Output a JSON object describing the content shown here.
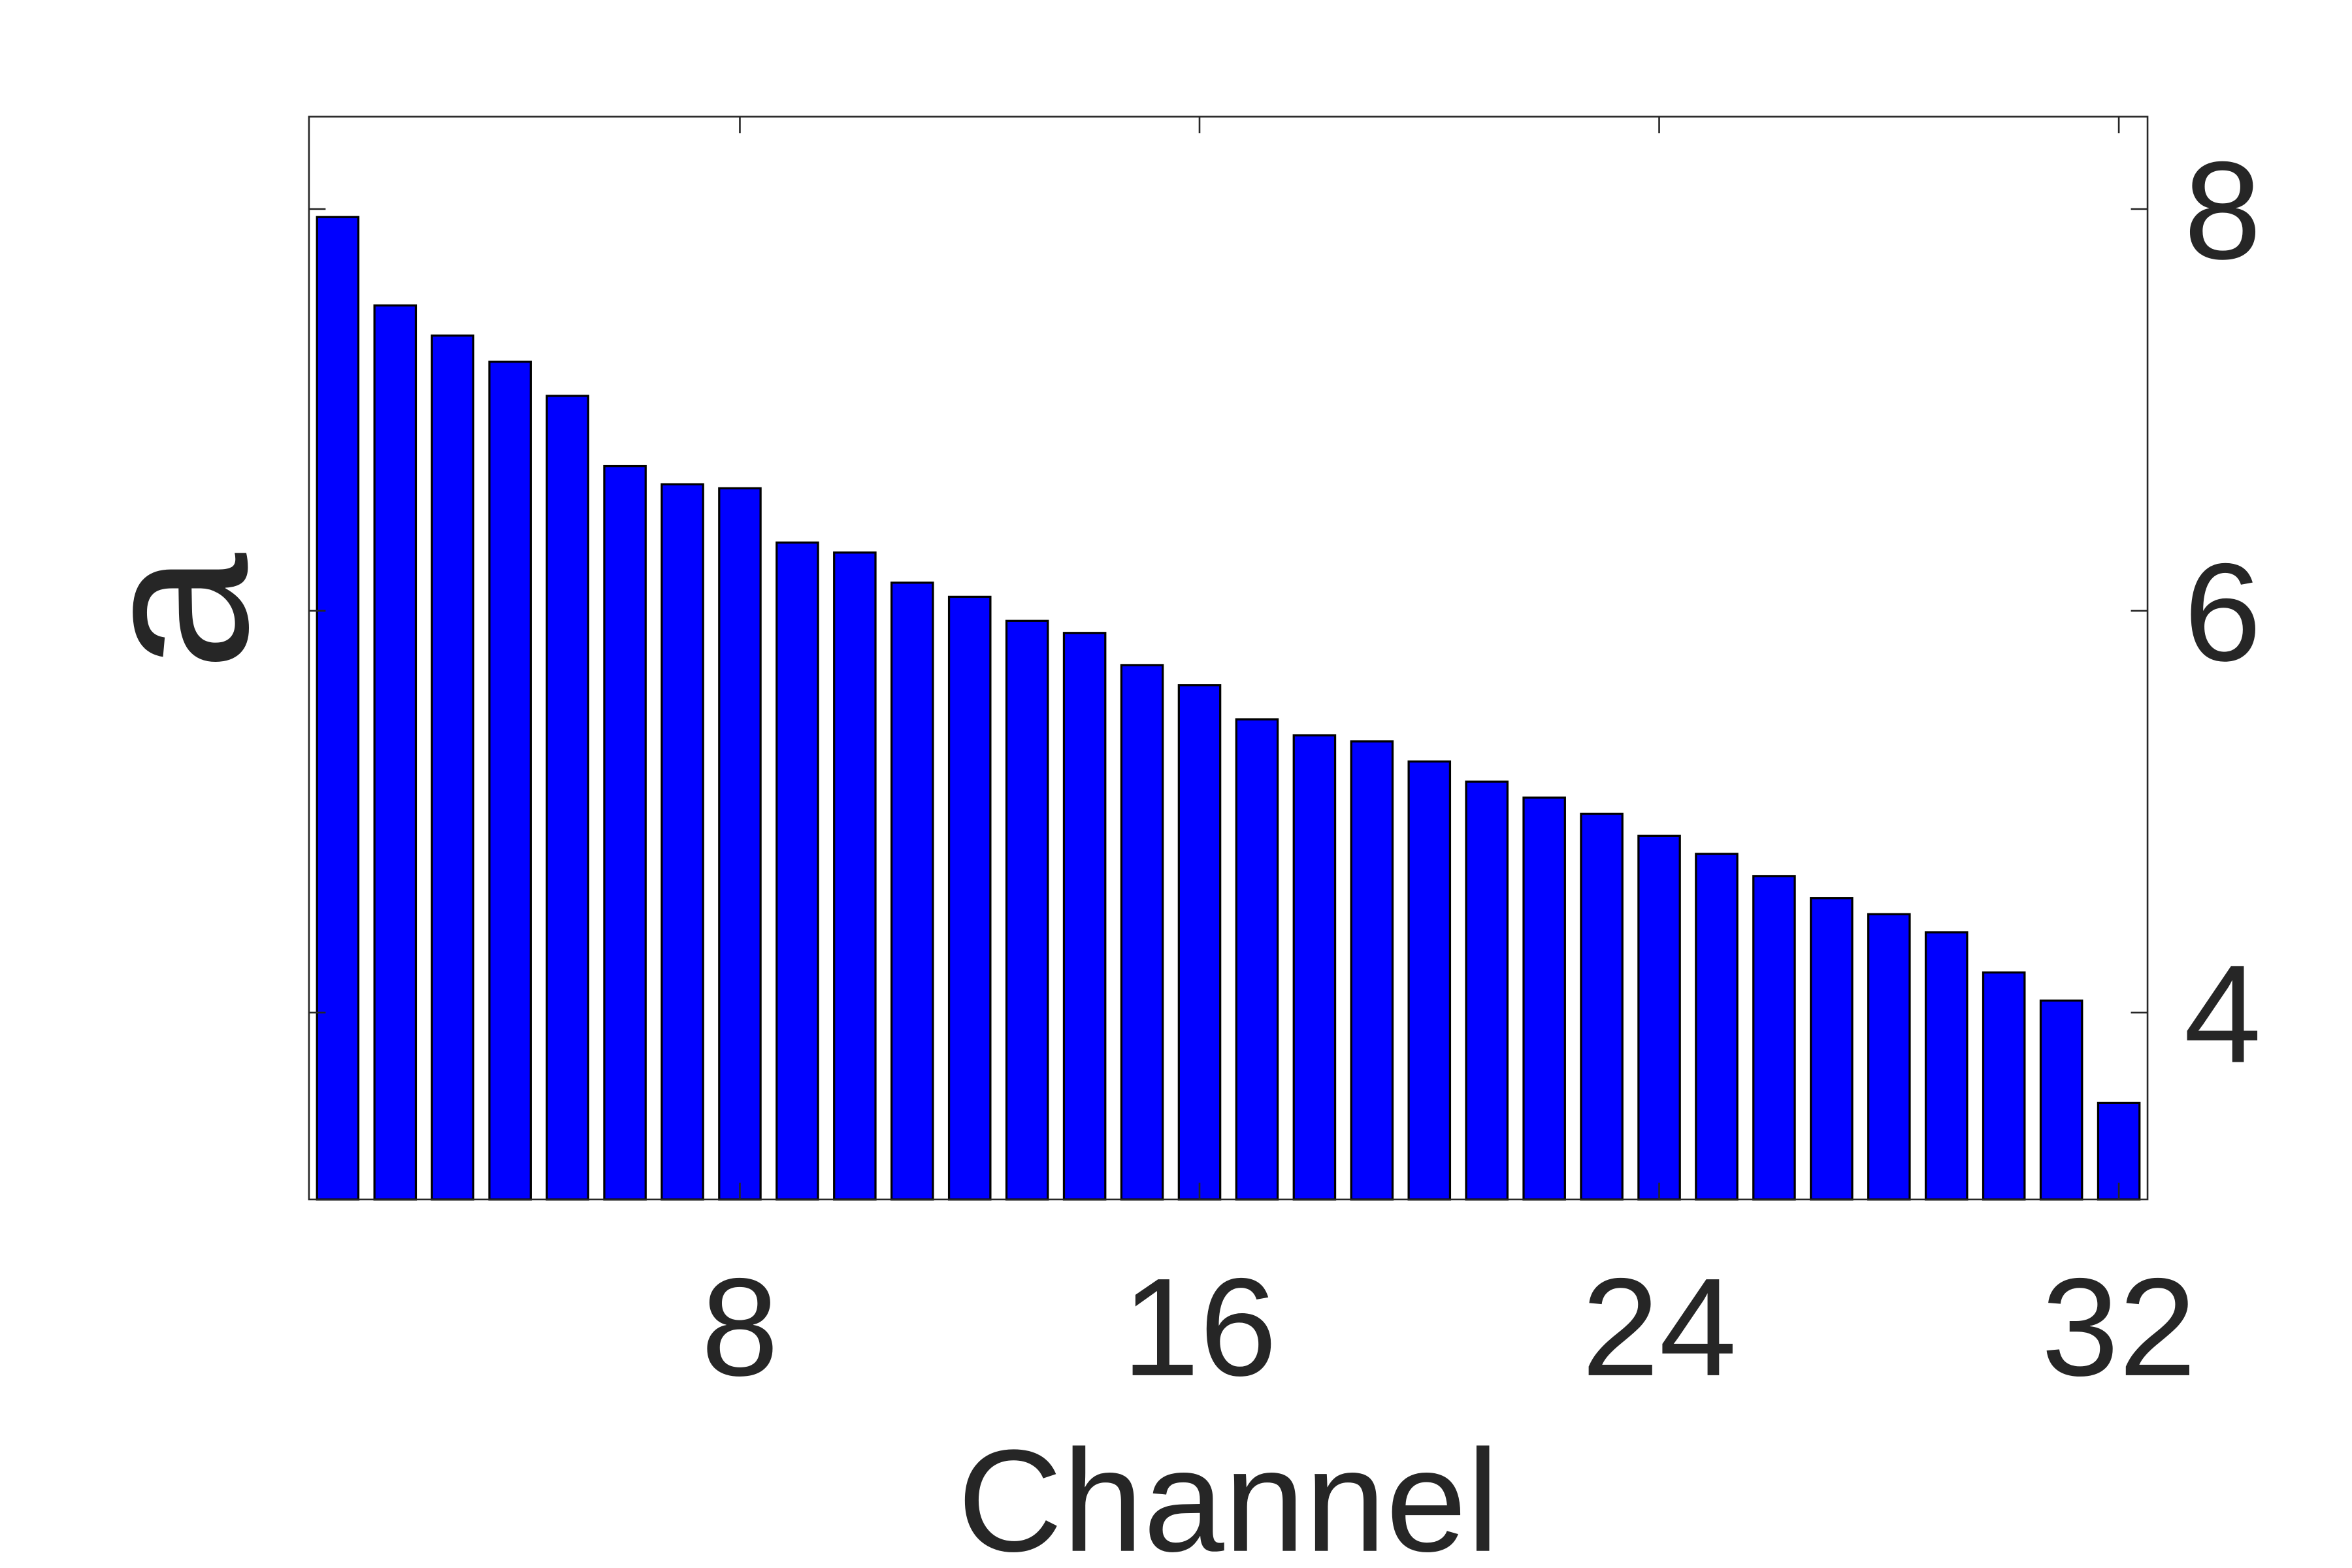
{
  "chart_data": {
    "type": "bar",
    "xlabel": "Channel",
    "ylabel": "a",
    "categories": [
      1,
      2,
      3,
      4,
      5,
      6,
      7,
      8,
      9,
      10,
      11,
      12,
      13,
      14,
      15,
      16,
      17,
      18,
      19,
      20,
      21,
      22,
      23,
      24,
      25,
      26,
      27,
      28,
      29,
      30,
      31,
      32
    ],
    "values": [
      7.96,
      7.52,
      7.37,
      7.24,
      7.07,
      6.72,
      6.63,
      6.61,
      6.34,
      6.29,
      6.14,
      6.07,
      5.95,
      5.89,
      5.73,
      5.63,
      5.46,
      5.38,
      5.35,
      5.25,
      5.15,
      5.07,
      4.99,
      4.88,
      4.79,
      4.68,
      4.57,
      4.49,
      4.4,
      4.2,
      4.06,
      3.55
    ],
    "xlim": [
      0.5,
      32.5
    ],
    "ylim": [
      3.07,
      8.46
    ],
    "xticks": [
      8,
      16,
      24,
      32
    ],
    "xtick_labels": [
      "8",
      "16",
      "24",
      "32"
    ],
    "yticks": [
      4,
      6,
      8
    ],
    "ytick_labels": [
      "4",
      "6",
      "8"
    ],
    "y_axis_location": "right",
    "grid": false,
    "legend": "none",
    "bar_color": "#0000ff",
    "bar_edge_color": "#000000",
    "axis_color": "#262626"
  }
}
